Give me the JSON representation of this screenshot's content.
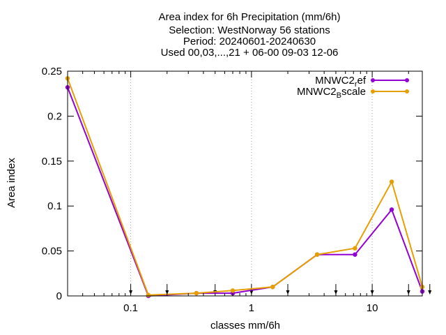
{
  "chart_data": {
    "type": "line",
    "title_lines": [
      "Area index  for 6h Precipitation (mm/6h)",
      "Selection: WestNorway     56 stations",
      "Period: 20240601-20240630",
      "Used 00,03,...,21 + 06-00 09-03 12-06"
    ],
    "xlabel": "classes mm/6h",
    "ylabel": "Area index",
    "xscale": "log",
    "xlim": [
      0.03,
      26
    ],
    "ylim": [
      0,
      0.25
    ],
    "xticks": [
      {
        "value": 0.1,
        "label": "0.1"
      },
      {
        "value": 1,
        "label": "1"
      },
      {
        "value": 10,
        "label": "10"
      }
    ],
    "yticks": [
      {
        "value": 0,
        "label": "0"
      },
      {
        "value": 0.05,
        "label": "0.05"
      },
      {
        "value": 0.1,
        "label": "0.1"
      },
      {
        "value": 0.15,
        "label": "0.15"
      },
      {
        "value": 0.2,
        "label": "0.2"
      },
      {
        "value": 0.25,
        "label": "0.25"
      }
    ],
    "grid": "x-major",
    "legend_position": "top-right",
    "threshold_arrows": [
      0.1,
      0.2,
      0.5,
      1,
      2,
      5,
      10,
      20,
      30
    ],
    "series": [
      {
        "name_base": "MNWC2",
        "name_sub": "r",
        "name_rest": "ef",
        "color": "#9400d3",
        "x": [
          0.03,
          0.14,
          0.35,
          0.7,
          1.5,
          3.5,
          7.2,
          14.5,
          26
        ],
        "y": [
          0.232,
          0.0,
          0.003,
          0.003,
          0.01,
          0.046,
          0.046,
          0.096,
          0.005
        ]
      },
      {
        "name_base": "MNWC2",
        "name_sub": "B",
        "name_rest": "scale",
        "color": "#e69f00",
        "x": [
          0.03,
          0.14,
          0.35,
          0.7,
          1.5,
          3.5,
          7.2,
          14.5,
          26
        ],
        "y": [
          0.242,
          0.001,
          0.003,
          0.006,
          0.01,
          0.046,
          0.053,
          0.127,
          0.01
        ]
      }
    ]
  }
}
